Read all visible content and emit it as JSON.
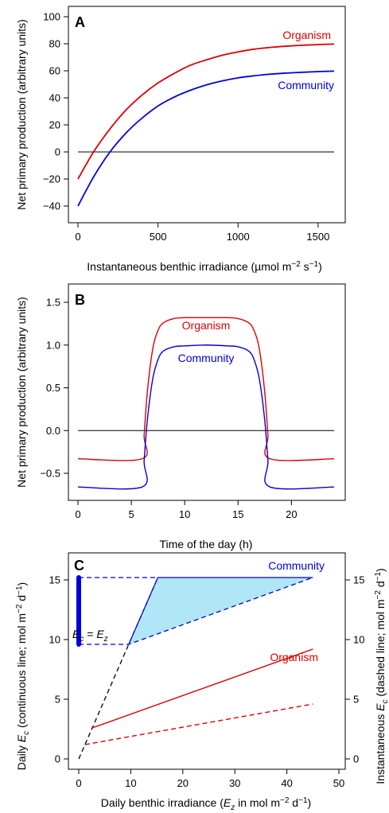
{
  "chart_data": [
    {
      "type": "line",
      "panel_label": "A",
      "xlabel": "Instantaneous benthic irradiance (µmol m⁻² s⁻¹)",
      "ylabel": "Net primary production (arbitrary units)",
      "xlim": [
        0,
        1600
      ],
      "ylim": [
        -40,
        100
      ],
      "xticks": [
        0,
        500,
        1000,
        1500
      ],
      "yticks": [
        -40,
        -20,
        0,
        20,
        40,
        60,
        80,
        100
      ],
      "zero_line": 0,
      "series": [
        {
          "name": "Organism",
          "color": "#dd0000",
          "x": [
            0,
            100,
            200,
            300,
            400,
            500,
            600,
            700,
            800,
            900,
            1000,
            1100,
            1200,
            1300,
            1400,
            1500,
            1600
          ],
          "y": [
            -20,
            0.5,
            17,
            31,
            42,
            51,
            58,
            64,
            68,
            71.5,
            74,
            76,
            77.3,
            78.2,
            78.9,
            79.4,
            79.8
          ]
        },
        {
          "name": "Community",
          "color": "#0000dd",
          "x": [
            0,
            100,
            200,
            300,
            400,
            500,
            600,
            700,
            800,
            900,
            1000,
            1100,
            1200,
            1300,
            1400,
            1500,
            1600
          ],
          "y": [
            -40,
            -18,
            0,
            14,
            25,
            34,
            40.5,
            45.5,
            49.5,
            52.5,
            54.8,
            56.3,
            57.5,
            58.3,
            58.9,
            59.4,
            59.8
          ]
        }
      ]
    },
    {
      "type": "line",
      "panel_label": "B",
      "xlabel": "Time of the day (h)",
      "ylabel": "Net primary production (arbitrary units)",
      "xlim": [
        0,
        24
      ],
      "ylim": [
        -0.7,
        1.6
      ],
      "xticks": [
        0,
        5,
        10,
        15,
        20
      ],
      "yticks": [
        -0.5,
        0.0,
        0.5,
        1.0,
        1.5
      ],
      "ytick_labels": [
        "−0.5",
        "0.0",
        "0.5",
        "1.0",
        "1.5"
      ],
      "zero_line": 0,
      "series": [
        {
          "name": "Organism",
          "color": "#dd0000",
          "x": [
            0,
            6,
            6.2,
            6.5,
            7,
            7.5,
            8,
            9,
            10,
            12,
            14,
            15,
            16,
            16.5,
            17,
            17.5,
            17.8,
            18,
            24
          ],
          "y": [
            -0.33,
            -0.33,
            -0.05,
            0.45,
            0.95,
            1.17,
            1.26,
            1.31,
            1.32,
            1.32,
            1.32,
            1.31,
            1.26,
            1.17,
            0.95,
            0.45,
            -0.05,
            -0.33,
            -0.33
          ]
        },
        {
          "name": "Community",
          "color": "#0000dd",
          "x": [
            0,
            6,
            6.2,
            6.5,
            7,
            7.5,
            8,
            9,
            10,
            12,
            14,
            15,
            16,
            16.5,
            17,
            17.5,
            17.8,
            18,
            24
          ],
          "y": [
            -0.66,
            -0.66,
            -0.35,
            0.12,
            0.6,
            0.83,
            0.93,
            0.98,
            0.99,
            1.0,
            0.99,
            0.98,
            0.93,
            0.83,
            0.6,
            0.12,
            -0.35,
            -0.66,
            -0.66
          ]
        }
      ]
    },
    {
      "type": "line",
      "panel_label": "C",
      "xlabel": "Daily benthic irradiance (Ez in mol m⁻² d⁻¹)",
      "ylabel": "Daily Ec (continuous line; mol m⁻² d⁻¹)",
      "ylabel_right": "Instantaneous Ec (dashed line; mol m⁻² d⁻¹)",
      "xlim": [
        0,
        50
      ],
      "ylim": [
        0,
        16
      ],
      "xticks": [
        0,
        10,
        20,
        30,
        40,
        50
      ],
      "yticks": [
        0,
        5,
        10,
        15
      ],
      "identity_label": "Ec = Ez",
      "identity_line": {
        "x": [
          0,
          15.2
        ],
        "y": [
          0,
          15.2
        ]
      },
      "community_solid": {
        "x": [
          9.6,
          15.2,
          45
        ],
        "y": [
          9.6,
          15.2,
          15.2
        ]
      },
      "community_dashed": {
        "x": [
          0,
          9.6,
          45
        ],
        "y": [
          9.6,
          9.6,
          15.2
        ]
      },
      "community_top_dashed": {
        "x": [
          0,
          15.2
        ],
        "y": [
          15.2,
          15.2
        ]
      },
      "community_range_bar": {
        "x": 0,
        "y": [
          9.6,
          15.2
        ]
      },
      "organism_solid": {
        "x": [
          2.6,
          45
        ],
        "y": [
          2.6,
          9.2
        ]
      },
      "organism_dashed": {
        "x": [
          1.2,
          45
        ],
        "y": [
          1.2,
          4.6
        ]
      },
      "series": [
        {
          "name": "Community",
          "color": "#0000dd",
          "fill": "#b0e6f5"
        },
        {
          "name": "Organism",
          "color": "#dd0000"
        }
      ]
    }
  ]
}
